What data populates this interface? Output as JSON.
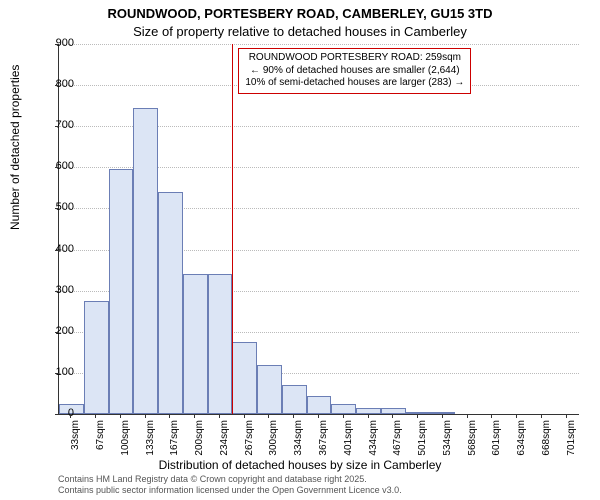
{
  "title_line1": "ROUNDWOOD, PORTESBERY ROAD, CAMBERLEY, GU15 3TD",
  "title_line2": "Size of property relative to detached houses in Camberley",
  "y_axis_label": "Number of detached properties",
  "x_axis_label": "Distribution of detached houses by size in Camberley",
  "footer_line1": "Contains HM Land Registry data © Crown copyright and database right 2025.",
  "footer_line2": "Contains public sector information licensed under the Open Government Licence v3.0.",
  "chart": {
    "type": "histogram",
    "ylim": [
      0,
      900
    ],
    "ytick_step": 100,
    "background_color": "#ffffff",
    "grid_color": "#bbbbbb",
    "bar_fill": "#dce5f5",
    "bar_border": "#6b7eb5",
    "axis_color": "#333333",
    "label_fontsize": 12,
    "tick_fontsize": 10,
    "x_categories": [
      "33sqm",
      "67sqm",
      "100sqm",
      "133sqm",
      "167sqm",
      "200sqm",
      "234sqm",
      "267sqm",
      "300sqm",
      "334sqm",
      "367sqm",
      "401sqm",
      "434sqm",
      "467sqm",
      "501sqm",
      "534sqm",
      "568sqm",
      "601sqm",
      "634sqm",
      "668sqm",
      "701sqm"
    ],
    "values": [
      25,
      275,
      595,
      745,
      540,
      340,
      340,
      175,
      120,
      70,
      45,
      25,
      15,
      15,
      5,
      5,
      2,
      2,
      0,
      0,
      2
    ],
    "marker": {
      "color": "#cc0000",
      "x_category_index": 7,
      "annotation_border": "#cc0000",
      "annotation_lines": [
        "ROUNDWOOD PORTESBERY ROAD: 259sqm",
        "← 90% of detached houses are smaller (2,644)",
        "10% of semi-detached houses are larger (283) →"
      ]
    }
  }
}
